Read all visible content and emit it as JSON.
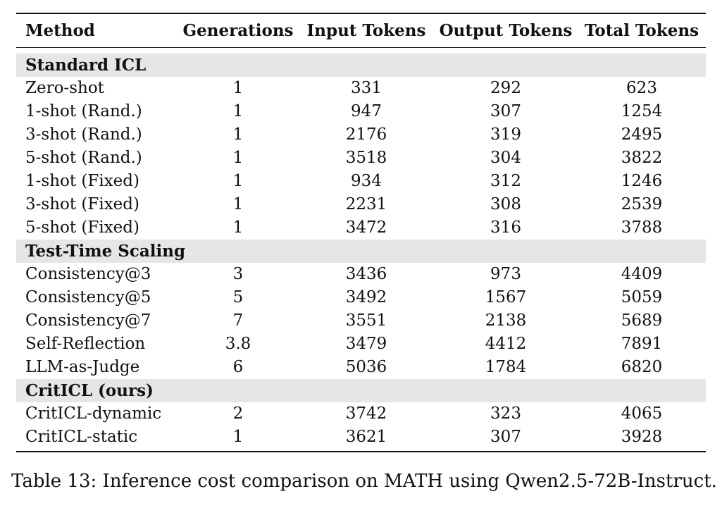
{
  "table": {
    "headers": [
      "Method",
      "Generations",
      "Input Tokens",
      "Output Tokens",
      "Total Tokens"
    ],
    "sections": [
      {
        "title": "Standard ICL",
        "rows": [
          [
            "Zero-shot",
            "1",
            "331",
            "292",
            "623"
          ],
          [
            "1-shot (Rand.)",
            "1",
            "947",
            "307",
            "1254"
          ],
          [
            "3-shot (Rand.)",
            "1",
            "2176",
            "319",
            "2495"
          ],
          [
            "5-shot (Rand.)",
            "1",
            "3518",
            "304",
            "3822"
          ],
          [
            "1-shot (Fixed)",
            "1",
            "934",
            "312",
            "1246"
          ],
          [
            "3-shot (Fixed)",
            "1",
            "2231",
            "308",
            "2539"
          ],
          [
            "5-shot (Fixed)",
            "1",
            "3472",
            "316",
            "3788"
          ]
        ]
      },
      {
        "title": "Test-Time Scaling",
        "rows": [
          [
            "Consistency@3",
            "3",
            "3436",
            "973",
            "4409"
          ],
          [
            "Consistency@5",
            "5",
            "3492",
            "1567",
            "5059"
          ],
          [
            "Consistency@7",
            "7",
            "3551",
            "2138",
            "5689"
          ],
          [
            "Self-Reflection",
            "3.8",
            "3479",
            "4412",
            "7891"
          ],
          [
            "LLM-as-Judge",
            "6",
            "5036",
            "1784",
            "6820"
          ]
        ]
      },
      {
        "title": "CritICL (ours)",
        "rows": [
          [
            "CritICL-dynamic",
            "2",
            "3742",
            "323",
            "4065"
          ],
          [
            "CritICL-static",
            "1",
            "3621",
            "307",
            "3928"
          ]
        ]
      }
    ]
  },
  "caption": "Table 13: Inference cost comparison on MATH using Qwen2.5-72B-Instruct."
}
